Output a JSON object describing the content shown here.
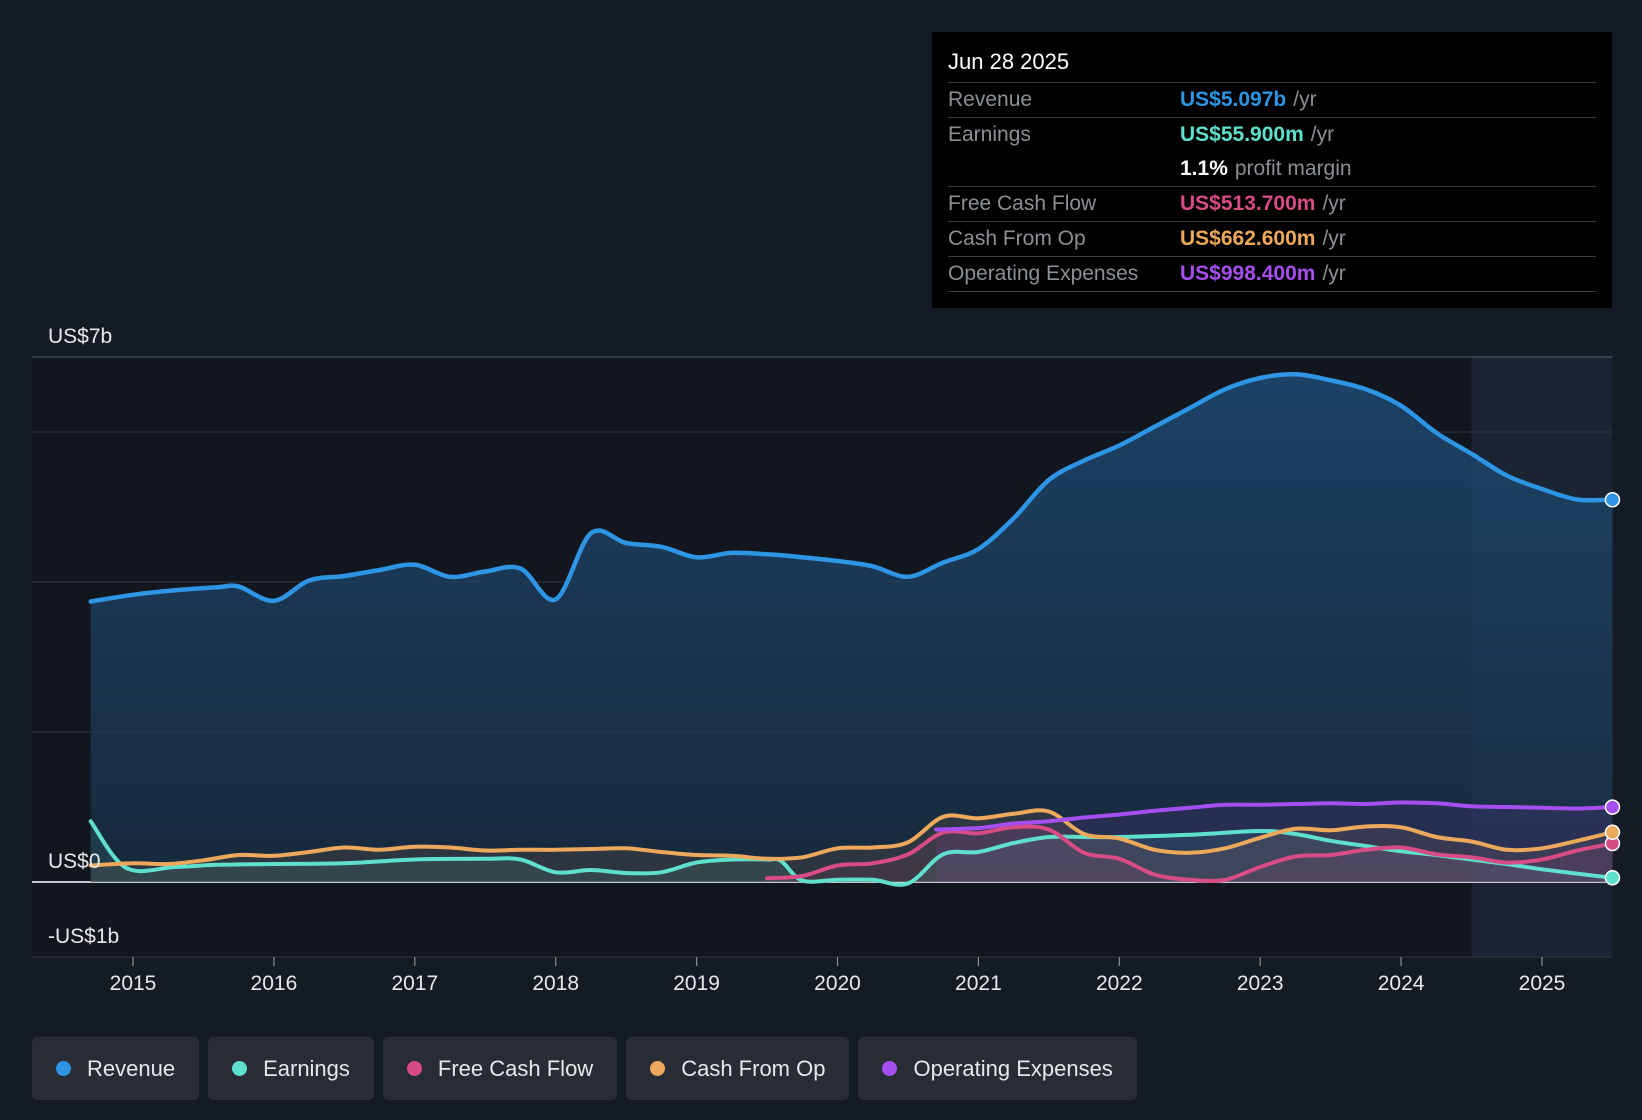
{
  "tooltip": {
    "date": "Jun 28 2025",
    "rows": [
      {
        "label": "Revenue",
        "value": "US$5.097b",
        "unit": "/yr",
        "color": "#2d95e3"
      },
      {
        "label": "Earnings",
        "value": "US$55.900m",
        "unit": "/yr",
        "color": "#5ee0cc"
      },
      {
        "label": "",
        "value": "1.1%",
        "unit": "profit margin",
        "color": "#ffffff"
      },
      {
        "label": "Free Cash Flow",
        "value": "US$513.700m",
        "unit": "/yr",
        "color": "#d84b85"
      },
      {
        "label": "Cash From Op",
        "value": "US$662.600m",
        "unit": "/yr",
        "color": "#eda95b"
      },
      {
        "label": "Operating Expenses",
        "value": "US$998.400m",
        "unit": "/yr",
        "color": "#a64ef0"
      }
    ]
  },
  "legend": [
    {
      "label": "Revenue",
      "color": "#2d95e3"
    },
    {
      "label": "Earnings",
      "color": "#5ee0cc"
    },
    {
      "label": "Free Cash Flow",
      "color": "#d84b85"
    },
    {
      "label": "Cash From Op",
      "color": "#eda95b"
    },
    {
      "label": "Operating Expenses",
      "color": "#a64ef0"
    }
  ],
  "chart_data": {
    "type": "area",
    "title": "",
    "xlabel": "",
    "ylabel": "",
    "ylim": [
      -1,
      7
    ],
    "xlim": [
      2014.75,
      2025.5
    ],
    "y_tick_labels": [
      {
        "value": 7,
        "label": "US$7b"
      },
      {
        "value": 0,
        "label": "US$0"
      },
      {
        "value": -1,
        "label": "-US$1b"
      }
    ],
    "gridlines": [
      7,
      6,
      4,
      2,
      0,
      -1
    ],
    "x_ticks": [
      2015,
      2016,
      2017,
      2018,
      2019,
      2020,
      2021,
      2022,
      2023,
      2024,
      2025
    ],
    "x_tick_labels": [
      "2015",
      "2016",
      "2017",
      "2018",
      "2019",
      "2020",
      "2021",
      "2022",
      "2023",
      "2024",
      "2025"
    ],
    "forecast_shade_start": 2024.5,
    "series": [
      {
        "name": "Revenue",
        "color": "#2d95e3",
        "points": [
          [
            2014.7,
            3.74
          ],
          [
            2015.0,
            3.83
          ],
          [
            2015.3,
            3.89
          ],
          [
            2015.6,
            3.93
          ],
          [
            2015.75,
            3.94
          ],
          [
            2016.0,
            3.75
          ],
          [
            2016.25,
            4.02
          ],
          [
            2016.5,
            4.08
          ],
          [
            2016.75,
            4.16
          ],
          [
            2017.0,
            4.23
          ],
          [
            2017.25,
            4.07
          ],
          [
            2017.5,
            4.14
          ],
          [
            2017.75,
            4.18
          ],
          [
            2018.0,
            3.77
          ],
          [
            2018.25,
            4.65
          ],
          [
            2018.5,
            4.52
          ],
          [
            2018.75,
            4.47
          ],
          [
            2019.0,
            4.33
          ],
          [
            2019.25,
            4.39
          ],
          [
            2019.5,
            4.37
          ],
          [
            2019.75,
            4.33
          ],
          [
            2020.0,
            4.28
          ],
          [
            2020.25,
            4.21
          ],
          [
            2020.5,
            4.07
          ],
          [
            2020.75,
            4.26
          ],
          [
            2021.0,
            4.44
          ],
          [
            2021.25,
            4.85
          ],
          [
            2021.5,
            5.36
          ],
          [
            2021.75,
            5.62
          ],
          [
            2022.0,
            5.82
          ],
          [
            2022.25,
            6.07
          ],
          [
            2022.5,
            6.32
          ],
          [
            2022.75,
            6.57
          ],
          [
            2023.0,
            6.72
          ],
          [
            2023.25,
            6.77
          ],
          [
            2023.5,
            6.69
          ],
          [
            2023.75,
            6.57
          ],
          [
            2024.0,
            6.35
          ],
          [
            2024.25,
            5.99
          ],
          [
            2024.5,
            5.71
          ],
          [
            2024.75,
            5.42
          ],
          [
            2025.0,
            5.24
          ],
          [
            2025.25,
            5.1
          ],
          [
            2025.5,
            5.097
          ]
        ]
      },
      {
        "name": "Earnings",
        "color": "#5ee0cc",
        "points": [
          [
            2014.7,
            0.81
          ],
          [
            2014.95,
            0.19
          ],
          [
            2015.3,
            0.2
          ],
          [
            2015.6,
            0.23
          ],
          [
            2016.0,
            0.24
          ],
          [
            2016.5,
            0.25
          ],
          [
            2017.0,
            0.3
          ],
          [
            2017.5,
            0.31
          ],
          [
            2017.75,
            0.3
          ],
          [
            2018.0,
            0.13
          ],
          [
            2018.25,
            0.16
          ],
          [
            2018.5,
            0.12
          ],
          [
            2018.75,
            0.13
          ],
          [
            2019.0,
            0.26
          ],
          [
            2019.25,
            0.3
          ],
          [
            2019.5,
            0.3
          ],
          [
            2019.6,
            0.28
          ],
          [
            2019.75,
            0.02
          ],
          [
            2020.0,
            0.03
          ],
          [
            2020.25,
            0.03
          ],
          [
            2020.5,
            -0.02
          ],
          [
            2020.75,
            0.37
          ],
          [
            2021.0,
            0.4
          ],
          [
            2021.25,
            0.52
          ],
          [
            2021.5,
            0.6
          ],
          [
            2021.75,
            0.6
          ],
          [
            2022.0,
            0.6
          ],
          [
            2022.5,
            0.63
          ],
          [
            2023.0,
            0.68
          ],
          [
            2023.25,
            0.64
          ],
          [
            2023.5,
            0.55
          ],
          [
            2023.75,
            0.48
          ],
          [
            2024.0,
            0.41
          ],
          [
            2024.25,
            0.36
          ],
          [
            2024.5,
            0.3
          ],
          [
            2024.75,
            0.24
          ],
          [
            2025.0,
            0.17
          ],
          [
            2025.5,
            0.0559
          ]
        ]
      },
      {
        "name": "Free Cash Flow",
        "color": "#d84b85",
        "points": [
          [
            2019.5,
            0.05
          ],
          [
            2019.75,
            0.08
          ],
          [
            2020.0,
            0.22
          ],
          [
            2020.25,
            0.25
          ],
          [
            2020.5,
            0.37
          ],
          [
            2020.75,
            0.66
          ],
          [
            2021.0,
            0.65
          ],
          [
            2021.25,
            0.73
          ],
          [
            2021.5,
            0.7
          ],
          [
            2021.75,
            0.39
          ],
          [
            2022.0,
            0.31
          ],
          [
            2022.25,
            0.1
          ],
          [
            2022.5,
            0.03
          ],
          [
            2022.75,
            0.03
          ],
          [
            2023.0,
            0.2
          ],
          [
            2023.25,
            0.34
          ],
          [
            2023.5,
            0.36
          ],
          [
            2023.75,
            0.43
          ],
          [
            2024.0,
            0.46
          ],
          [
            2024.25,
            0.37
          ],
          [
            2024.5,
            0.33
          ],
          [
            2024.75,
            0.26
          ],
          [
            2025.0,
            0.3
          ],
          [
            2025.25,
            0.42
          ],
          [
            2025.5,
            0.5137
          ]
        ]
      },
      {
        "name": "Cash From Op",
        "color": "#eda95b",
        "points": [
          [
            2014.7,
            0.22
          ],
          [
            2015.0,
            0.25
          ],
          [
            2015.25,
            0.24
          ],
          [
            2015.5,
            0.29
          ],
          [
            2015.75,
            0.36
          ],
          [
            2016.0,
            0.35
          ],
          [
            2016.25,
            0.4
          ],
          [
            2016.5,
            0.46
          ],
          [
            2016.75,
            0.43
          ],
          [
            2017.0,
            0.47
          ],
          [
            2017.25,
            0.46
          ],
          [
            2017.5,
            0.42
          ],
          [
            2017.75,
            0.43
          ],
          [
            2018.0,
            0.43
          ],
          [
            2018.25,
            0.44
          ],
          [
            2018.5,
            0.45
          ],
          [
            2018.75,
            0.4
          ],
          [
            2019.0,
            0.36
          ],
          [
            2019.25,
            0.35
          ],
          [
            2019.5,
            0.31
          ],
          [
            2019.75,
            0.33
          ],
          [
            2020.0,
            0.45
          ],
          [
            2020.25,
            0.46
          ],
          [
            2020.5,
            0.53
          ],
          [
            2020.75,
            0.87
          ],
          [
            2021.0,
            0.85
          ],
          [
            2021.25,
            0.91
          ],
          [
            2021.5,
            0.94
          ],
          [
            2021.75,
            0.64
          ],
          [
            2022.0,
            0.58
          ],
          [
            2022.25,
            0.43
          ],
          [
            2022.5,
            0.39
          ],
          [
            2022.75,
            0.45
          ],
          [
            2023.0,
            0.59
          ],
          [
            2023.25,
            0.71
          ],
          [
            2023.5,
            0.69
          ],
          [
            2023.75,
            0.74
          ],
          [
            2024.0,
            0.73
          ],
          [
            2024.25,
            0.6
          ],
          [
            2024.5,
            0.54
          ],
          [
            2024.75,
            0.43
          ],
          [
            2025.0,
            0.45
          ],
          [
            2025.25,
            0.55
          ],
          [
            2025.5,
            0.6626
          ]
        ]
      },
      {
        "name": "Operating Expenses",
        "color": "#a64ef0",
        "points": [
          [
            2020.7,
            0.7
          ],
          [
            2021.0,
            0.72
          ],
          [
            2021.25,
            0.78
          ],
          [
            2021.5,
            0.81
          ],
          [
            2021.75,
            0.86
          ],
          [
            2022.0,
            0.9
          ],
          [
            2022.25,
            0.95
          ],
          [
            2022.5,
            0.99
          ],
          [
            2022.75,
            1.03
          ],
          [
            2023.0,
            1.03
          ],
          [
            2023.25,
            1.04
          ],
          [
            2023.5,
            1.05
          ],
          [
            2023.75,
            1.04
          ],
          [
            2024.0,
            1.06
          ],
          [
            2024.25,
            1.05
          ],
          [
            2024.5,
            1.01
          ],
          [
            2024.75,
            1.0
          ],
          [
            2025.0,
            0.99
          ],
          [
            2025.25,
            0.98
          ],
          [
            2025.5,
            0.9984
          ]
        ]
      }
    ]
  }
}
